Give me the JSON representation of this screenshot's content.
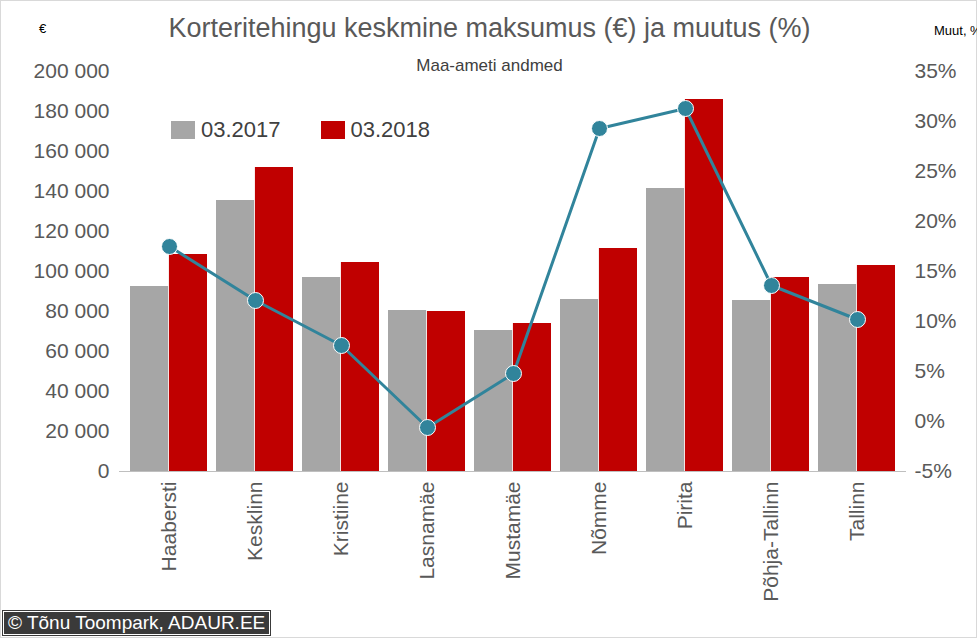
{
  "chart_data": {
    "type": "bar",
    "title": "Korteritehingu keskmine maksumus (€) ja muutus (%)",
    "subtitle": "Maa-ameti andmed",
    "y_label": "€",
    "y2_label": "Muut, %",
    "credit": "© Tõnu Toompark, ADAUR.EE",
    "categories": [
      "Haabersti",
      "Kesklinn",
      "Kristiine",
      "Lasnamäe",
      "Mustamäe",
      "Nõmme",
      "Pirita",
      "Põhja-Tallinn",
      "Tallinn"
    ],
    "series": [
      {
        "name": "03.2017",
        "color": "#a6a6a6",
        "values": [
          92500,
          135500,
          97000,
          80500,
          70500,
          86000,
          141500,
          85500,
          93500
        ]
      },
      {
        "name": "03.2018",
        "color": "#c00000",
        "values": [
          108500,
          152000,
          104500,
          80000,
          74000,
          111500,
          186000,
          97000,
          103000
        ]
      },
      {
        "type": "line",
        "axis": "y2",
        "color": "#31849b",
        "marker": "circle",
        "line_style": "solid",
        "values": [
          17.5,
          12.1,
          7.6,
          -0.6,
          4.8,
          29.3,
          31.3,
          13.6,
          10.2
        ]
      }
    ],
    "ylim": [
      0,
      200000
    ],
    "yticks": [
      0,
      {
        "value": 20000,
        "label": "20 000"
      },
      {
        "value": 40000,
        "label": "40 000"
      },
      {
        "value": 60000,
        "label": "60 000"
      },
      {
        "value": 80000,
        "label": "80 000"
      },
      {
        "value": 100000,
        "label": "100 000"
      },
      {
        "value": 120000,
        "label": "120 000"
      },
      {
        "value": 140000,
        "label": "140 000"
      },
      {
        "value": 160000,
        "label": "160 000"
      },
      {
        "value": 180000,
        "label": "180 000"
      },
      {
        "value": 200000,
        "label": "200 000"
      }
    ],
    "y2lim": [
      -5,
      35
    ],
    "y2ticks": [
      {
        "value": -5,
        "label": "-5%"
      },
      {
        "value": 0,
        "label": "0%"
      },
      {
        "value": 5,
        "label": "5%"
      },
      {
        "value": 10,
        "label": "10%"
      },
      {
        "value": 15,
        "label": "15%"
      },
      {
        "value": 20,
        "label": "20%"
      },
      {
        "value": 25,
        "label": "25%"
      },
      {
        "value": 30,
        "label": "30%"
      },
      {
        "value": 35,
        "label": "35%"
      }
    ],
    "grid": false,
    "legend": "top-left"
  }
}
